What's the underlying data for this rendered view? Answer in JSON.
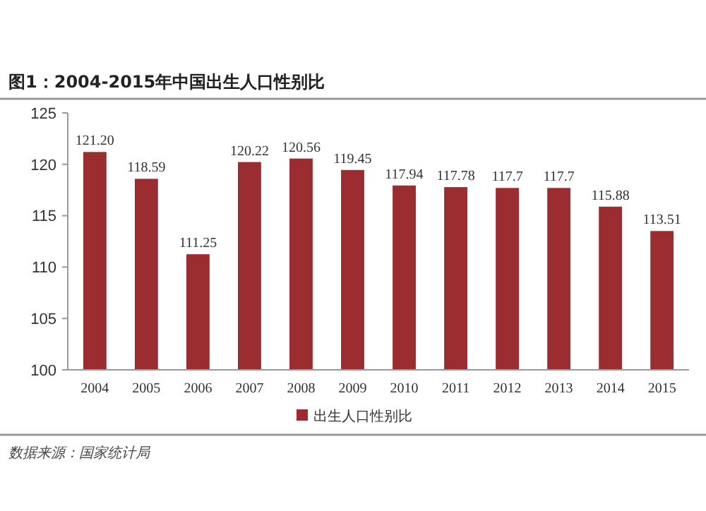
{
  "chart_data": {
    "type": "bar",
    "title": "图1：2004-2015年中国出生人口性别比",
    "categories": [
      "2004",
      "2005",
      "2006",
      "2007",
      "2008",
      "2009",
      "2010",
      "2011",
      "2012",
      "2013",
      "2014",
      "2015"
    ],
    "series": [
      {
        "name": "出生人口性别比",
        "color": "#9b2d30",
        "values": [
          121.2,
          118.59,
          111.25,
          120.22,
          120.56,
          119.45,
          117.94,
          117.78,
          117.7,
          117.7,
          115.88,
          113.51
        ]
      }
    ],
    "value_labels": [
      "121.20",
      "118.59",
      "111.25",
      "120.22",
      "120.56",
      "119.45",
      "117.94",
      "117.78",
      "117.7",
      "117.7",
      "115.88",
      "113.51"
    ],
    "ylim": [
      100,
      125
    ],
    "yticks": [
      100,
      105,
      110,
      115,
      120,
      125
    ],
    "legend": "bottom",
    "annotations": [
      "数据来源：国家统计局"
    ]
  }
}
